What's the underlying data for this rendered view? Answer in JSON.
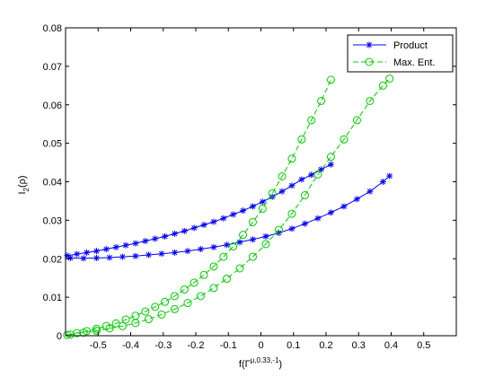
{
  "chart_data": {
    "type": "line",
    "xlabel": "f(Γ^{μ,0.33,-1})",
    "ylabel": "I_2(ρ)",
    "xlim": [
      -0.6,
      0.6
    ],
    "ylim": [
      0,
      0.08
    ],
    "x_ticks": [
      -0.5,
      -0.4,
      -0.3,
      -0.2,
      -0.1,
      0,
      0.1,
      0.2,
      0.3,
      0.4,
      0.5
    ],
    "x_tick_labels": [
      "-0.5",
      "-0.4",
      "-0.3",
      "-0.2",
      "-0.1",
      "0",
      "0.1",
      "0.2",
      "0.3",
      "0.4",
      "0.5"
    ],
    "y_ticks": [
      0,
      0.01,
      0.02,
      0.03,
      0.04,
      0.05,
      0.06,
      0.07,
      0.08
    ],
    "y_tick_labels": [
      "0",
      "0.01",
      "0.02",
      "0.03",
      "0.04",
      "0.05",
      "0.06",
      "0.07",
      "0.08"
    ],
    "grid": false,
    "legend_position": "top-right",
    "colors": {
      "product": "#0000ff",
      "maxent": "#00cc00"
    },
    "series": [
      {
        "name": "Product",
        "marker": "asterisk",
        "line": "solid",
        "color": "#0000ff",
        "x": [
          -0.595,
          -0.565,
          -0.535,
          -0.505,
          -0.475,
          -0.445,
          -0.415,
          -0.385,
          -0.355,
          -0.325,
          -0.295,
          -0.265,
          -0.235,
          -0.205,
          -0.175,
          -0.145,
          -0.115,
          -0.085,
          -0.055,
          -0.025,
          0.005,
          0.035,
          0.065,
          0.095,
          0.125,
          0.155,
          0.185,
          0.215
        ],
        "y": [
          0.0208,
          0.0212,
          0.0216,
          0.022,
          0.0225,
          0.023,
          0.0235,
          0.024,
          0.0246,
          0.0252,
          0.0258,
          0.0265,
          0.0272,
          0.028,
          0.0288,
          0.0296,
          0.0305,
          0.0315,
          0.0325,
          0.0336,
          0.0348,
          0.0361,
          0.0375,
          0.039,
          0.0406,
          0.0418,
          0.0432,
          0.0445
        ]
      },
      {
        "name": "Product",
        "marker": "asterisk",
        "line": "solid",
        "color": "#0000ff",
        "x": [
          -0.585,
          -0.545,
          -0.505,
          -0.465,
          -0.425,
          -0.385,
          -0.345,
          -0.305,
          -0.265,
          -0.225,
          -0.185,
          -0.145,
          -0.105,
          -0.065,
          -0.025,
          0.015,
          0.055,
          0.095,
          0.135,
          0.175,
          0.215,
          0.255,
          0.295,
          0.335,
          0.375,
          0.395
        ],
        "y": [
          0.0202,
          0.0201,
          0.0202,
          0.0203,
          0.0205,
          0.0207,
          0.021,
          0.0213,
          0.0216,
          0.022,
          0.0225,
          0.023,
          0.0236,
          0.0243,
          0.025,
          0.0258,
          0.0267,
          0.0278,
          0.0291,
          0.0305,
          0.032,
          0.0336,
          0.0355,
          0.0375,
          0.04,
          0.0415
        ]
      },
      {
        "name": "Max. Ent.",
        "marker": "circle",
        "line": "dashed",
        "color": "#00cc00",
        "x": [
          -0.585,
          -0.545,
          -0.505,
          -0.465,
          -0.425,
          -0.385,
          -0.345,
          -0.305,
          -0.265,
          -0.225,
          -0.185,
          -0.145,
          -0.105,
          -0.065,
          -0.025,
          0.015,
          0.055,
          0.095,
          0.135,
          0.175,
          0.215,
          0.255,
          0.295,
          0.335,
          0.375,
          0.395
        ],
        "y": [
          0.0003,
          0.0008,
          0.0013,
          0.0019,
          0.0025,
          0.0033,
          0.0043,
          0.0055,
          0.0069,
          0.0085,
          0.0103,
          0.0124,
          0.0148,
          0.0175,
          0.0205,
          0.0238,
          0.0275,
          0.0317,
          0.0365,
          0.0419,
          0.0465,
          0.051,
          0.056,
          0.061,
          0.065,
          0.0668
        ]
      },
      {
        "name": "Max. Ent.",
        "marker": "circle",
        "line": "dashed",
        "color": "#00cc00",
        "x": [
          -0.595,
          -0.565,
          -0.535,
          -0.505,
          -0.475,
          -0.445,
          -0.415,
          -0.385,
          -0.355,
          -0.325,
          -0.295,
          -0.265,
          -0.235,
          -0.205,
          -0.175,
          -0.145,
          -0.115,
          -0.085,
          -0.055,
          -0.025,
          0.005,
          0.035,
          0.065,
          0.095,
          0.125,
          0.155,
          0.185,
          0.215
        ],
        "y": [
          0.0002,
          0.0007,
          0.0012,
          0.0018,
          0.0025,
          0.0032,
          0.0042,
          0.0052,
          0.0063,
          0.0075,
          0.0088,
          0.0103,
          0.012,
          0.0138,
          0.0158,
          0.018,
          0.0205,
          0.0232,
          0.0262,
          0.0295,
          0.033,
          0.037,
          0.0414,
          0.046,
          0.051,
          0.056,
          0.061,
          0.0665
        ]
      }
    ]
  },
  "legend": {
    "items": [
      {
        "label": "Product"
      },
      {
        "label": "Max. Ent."
      }
    ]
  },
  "labels": {
    "xlabel_main": "f(Γ",
    "xlabel_sup": "μ,0.33,-1",
    "xlabel_end": ")",
    "ylabel_main": "I",
    "ylabel_sub": "2",
    "ylabel_end": "(ρ)"
  }
}
